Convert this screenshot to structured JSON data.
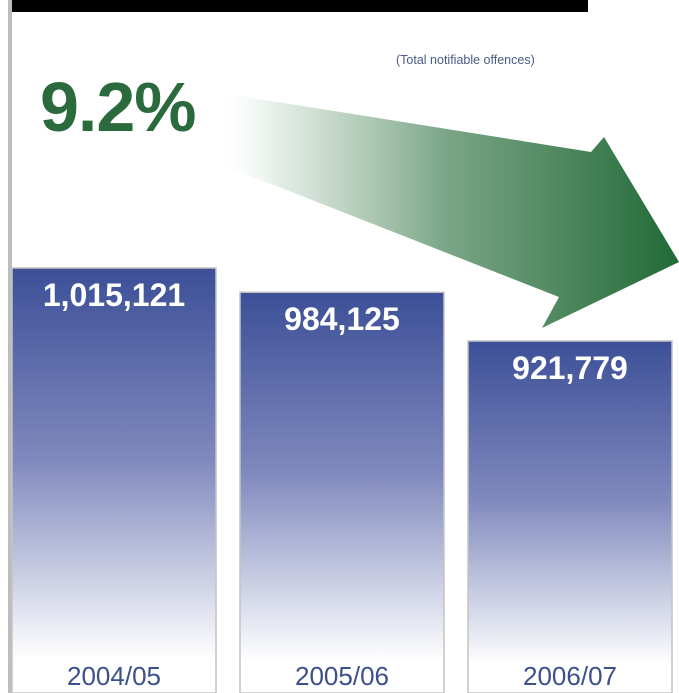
{
  "subtitle": "(Total notifiable offences)",
  "change_label": "9.2%",
  "colors": {
    "bar_top": "#3c4f97",
    "bar_mid": "#7f89bd",
    "bar_bottom": "#ffffff",
    "arrow_dark": "#216a37",
    "change_text": "#2a6a3c",
    "category_text": "#3d4f8c"
  },
  "chart_data": {
    "type": "bar",
    "title": "",
    "categories": [
      "2004/05",
      "2005/06",
      "2006/07"
    ],
    "values": [
      1015121,
      984125,
      921779
    ],
    "value_labels": [
      "1,015,121",
      "984,125",
      "921,779"
    ],
    "ylim": [
      0,
      1015121
    ],
    "grid": false,
    "legend": "none"
  }
}
